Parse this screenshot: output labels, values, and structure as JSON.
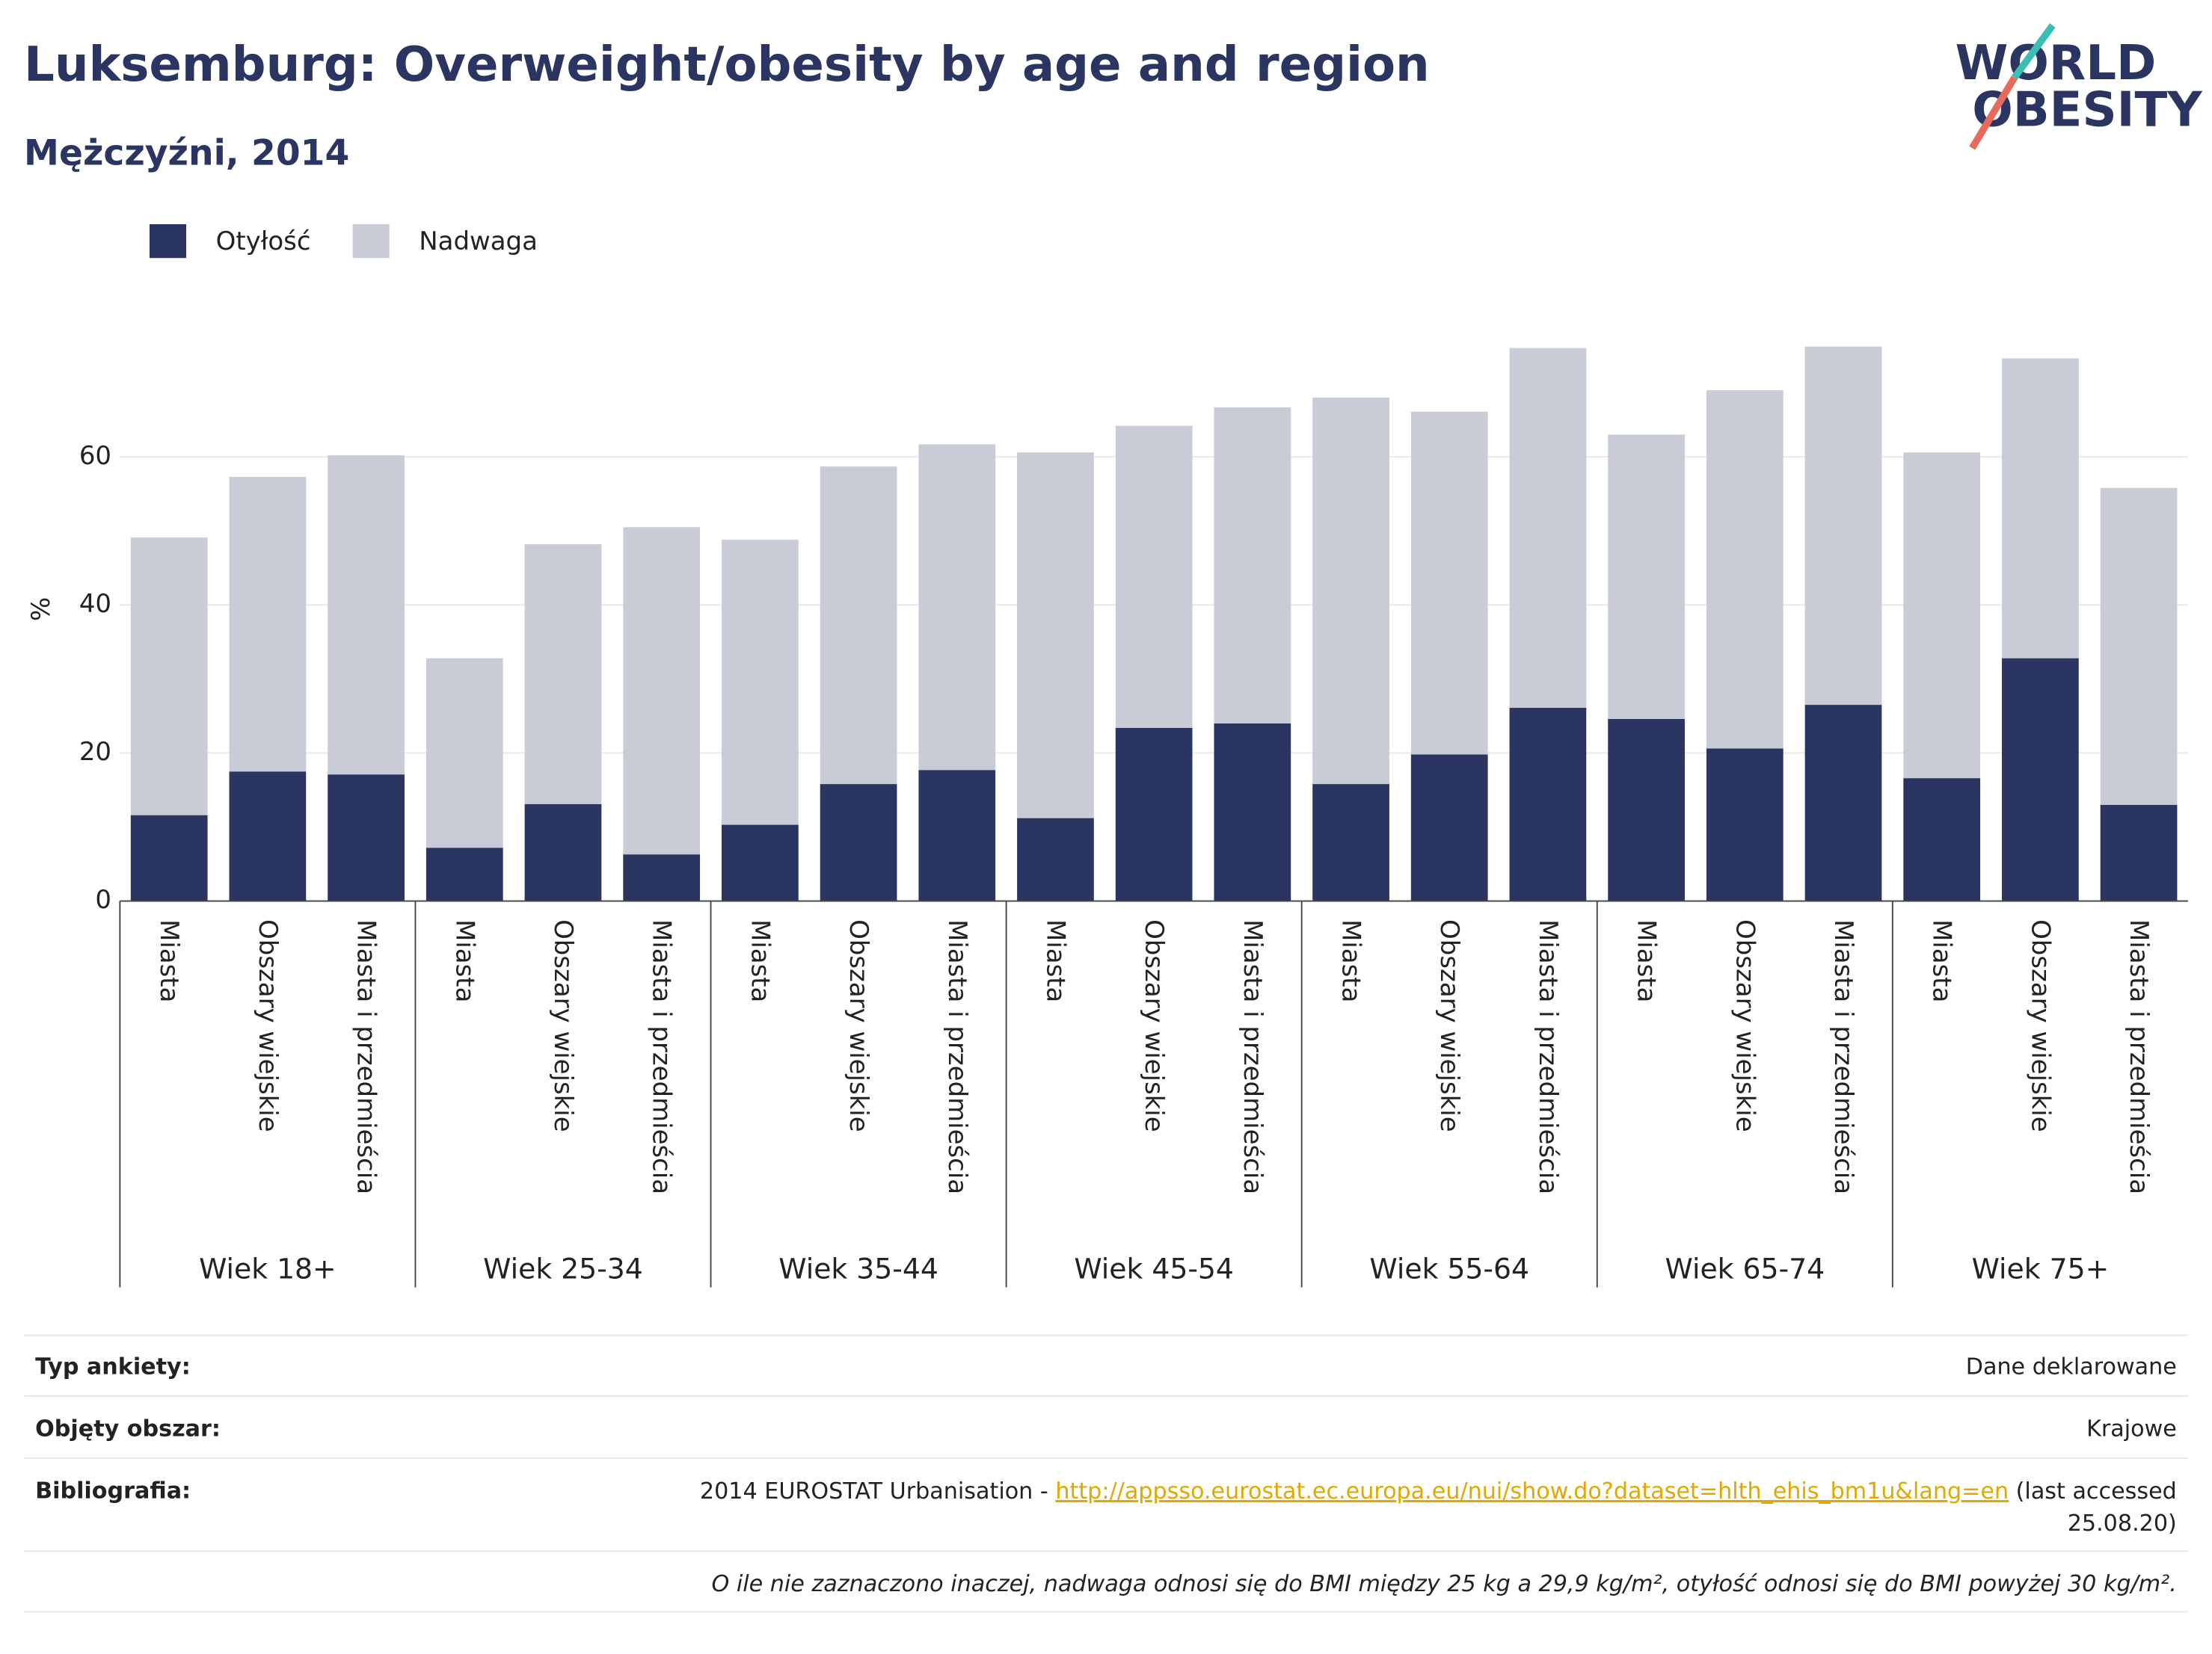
{
  "chart_data": {
    "type": "stacked_bar",
    "title": "Luksemburg: Overweight/obesity by age and region",
    "subtitle": "Mężczyźni, 2014",
    "ylabel": "%",
    "ylim": [
      0,
      80
    ],
    "yticks": [
      0,
      20,
      40,
      60
    ],
    "grid": true,
    "groups": [
      "Wiek 18+",
      "Wiek 25-34",
      "Wiek 35-44",
      "Wiek 45-54",
      "Wiek 55-64",
      "Wiek 65-74",
      "Wiek 75+"
    ],
    "categories": [
      "Miasta",
      "Obszary wiejskie",
      "Miasta i przedmieścia",
      "Miasta",
      "Obszary wiejskie",
      "Miasta i przedmieścia",
      "Miasta",
      "Obszary wiejskie",
      "Miasta i przedmieścia",
      "Miasta",
      "Obszary wiejskie",
      "Miasta i przedmieścia",
      "Miasta",
      "Obszary wiejskie",
      "Miasta i przedmieścia",
      "Miasta",
      "Obszary wiejskie",
      "Miasta i przedmieścia",
      "Miasta",
      "Obszary wiejskie",
      "Miasta i przedmieścia"
    ],
    "series": [
      {
        "name": "Otyłość",
        "color": "#2a3561",
        "values": [
          11.6,
          17.5,
          17.1,
          7.2,
          13.1,
          6.3,
          10.3,
          15.8,
          17.7,
          11.2,
          23.4,
          24.0,
          15.8,
          19.8,
          26.1,
          24.6,
          20.6,
          26.5,
          16.6,
          32.8,
          13.0
        ]
      },
      {
        "name": "Nadwaga",
        "color": "#c9cbd6",
        "values": [
          37.5,
          39.8,
          43.1,
          25.6,
          35.1,
          44.2,
          38.5,
          42.9,
          44.0,
          49.4,
          40.8,
          42.7,
          52.2,
          46.3,
          48.6,
          38.4,
          48.4,
          48.4,
          44.0,
          40.5,
          42.8
        ]
      }
    ]
  },
  "logo": {
    "line1": "WORLD",
    "line2": "OBESITY"
  },
  "footer": {
    "rows": [
      {
        "label": "Typ ankiety:",
        "value": "Dane deklarowane"
      },
      {
        "label": "Objęty obszar:",
        "value": "Krajowe"
      }
    ],
    "bibliography": {
      "label": "Bibliografia:",
      "text": "2014 EUROSTAT Urbanisation - ",
      "link": "http://appsso.eurostat.ec.europa.eu/nui/show.do?dataset=hlth_ehis_bm1u&lang=en",
      "suffix": " (last accessed",
      "suffix2": "25.08.20)"
    },
    "note": "O ile nie zaznaczono inaczej, nadwaga odnosi się do BMI między 25 kg a 29,9 kg/m², otyłość odnosi się do BMI powyżej 30 kg/m²."
  }
}
